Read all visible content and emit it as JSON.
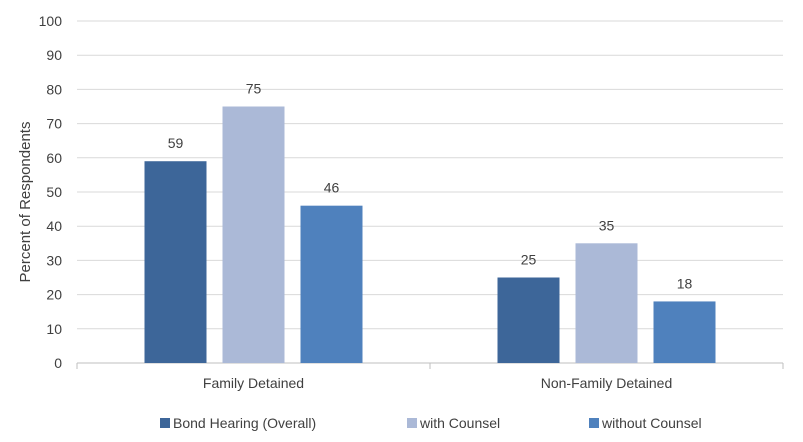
{
  "chart_data": {
    "type": "bar",
    "title": "",
    "xlabel": "",
    "ylabel": "Percent of Respondents",
    "ylim": [
      0,
      100
    ],
    "yticks": [
      0,
      10,
      20,
      30,
      40,
      50,
      60,
      70,
      80,
      90,
      100
    ],
    "grid": true,
    "legend_position": "bottom",
    "categories": [
      "Family Detained",
      "Non-Family Detained"
    ],
    "series": [
      {
        "name": "Bond Hearing (Overall)",
        "values": [
          59,
          25
        ],
        "color": "#3d6699"
      },
      {
        "name": "with Counsel",
        "values": [
          75,
          35
        ],
        "color": "#abb9d7"
      },
      {
        "name": "without Counsel",
        "values": [
          46,
          18
        ],
        "color": "#4f81bd"
      }
    ]
  }
}
